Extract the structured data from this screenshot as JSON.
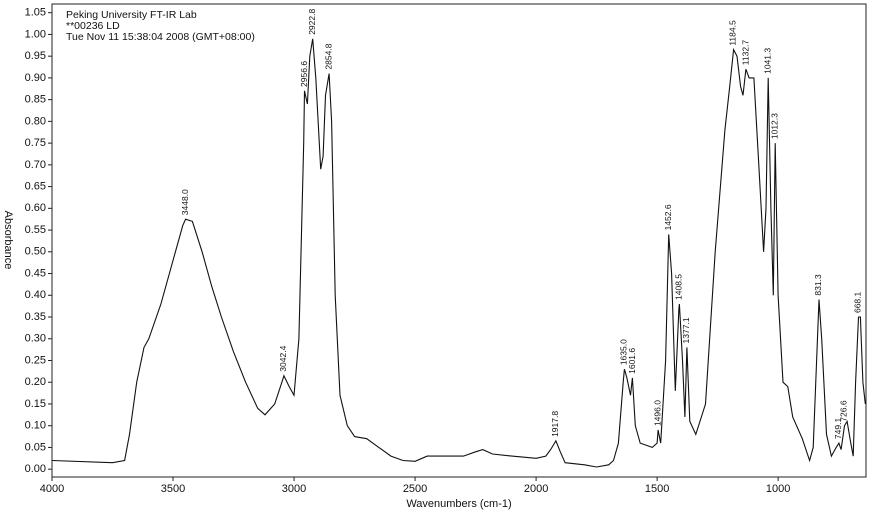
{
  "chart_data": {
    "type": "line",
    "header": [
      "Peking University FT-IR Lab",
      "**00236   LD",
      "Tue Nov 11 15:38:04 2008 (GMT+08:00)"
    ],
    "x_label": "Wavenumbers (cm-1)",
    "y_label": "Absorbance",
    "color": "#111111",
    "xlim": [
      4000,
      637
    ],
    "ylim": [
      -0.018,
      1.07
    ],
    "xticks": [
      4000,
      3500,
      3000,
      2500,
      2000,
      1500,
      1000
    ],
    "yticks": [
      {
        "value": 0,
        "label": "0.00"
      },
      0.05,
      {
        "value": 0.1,
        "label": "0.10"
      },
      0.15,
      {
        "value": 0.2,
        "label": "0.20"
      },
      0.25,
      {
        "value": 0.3,
        "label": "0.30"
      },
      0.35,
      {
        "value": 0.4,
        "label": "0.40"
      },
      0.45,
      {
        "value": 0.5,
        "label": "0.50"
      },
      0.55,
      {
        "value": 0.6,
        "label": "0.60"
      },
      0.65,
      {
        "value": 0.7,
        "label": "0.70"
      },
      0.75,
      {
        "value": 0.8,
        "label": "0.80"
      },
      0.85,
      {
        "value": 0.9,
        "label": "0.90"
      },
      0.95,
      {
        "value": 1.0,
        "label": "1.00"
      },
      1.05
    ],
    "x": [
      4000,
      3750,
      3700,
      3680,
      3650,
      3620,
      3600,
      3550,
      3500,
      3460,
      3448,
      3420,
      3380,
      3340,
      3300,
      3250,
      3200,
      3150,
      3120,
      3080,
      3050,
      3042,
      3020,
      3000,
      2980,
      2960,
      2957,
      2945,
      2935,
      2923,
      2910,
      2890,
      2880,
      2870,
      2855,
      2845,
      2830,
      2810,
      2780,
      2750,
      2700,
      2650,
      2600,
      2550,
      2500,
      2450,
      2400,
      2350,
      2300,
      2250,
      2220,
      2180,
      2100,
      2000,
      1960,
      1940,
      1918,
      1900,
      1880,
      1800,
      1750,
      1700,
      1680,
      1660,
      1640,
      1635,
      1625,
      1610,
      1602,
      1590,
      1570,
      1520,
      1500,
      1496,
      1485,
      1465,
      1452,
      1440,
      1425,
      1410,
      1408,
      1395,
      1385,
      1377,
      1365,
      1340,
      1300,
      1260,
      1220,
      1200,
      1184,
      1170,
      1155,
      1145,
      1133,
      1120,
      1100,
      1080,
      1060,
      1050,
      1041,
      1030,
      1020,
      1012,
      1000,
      980,
      960,
      940,
      900,
      870,
      855,
      831,
      820,
      800,
      780,
      760,
      749,
      740,
      726,
      715,
      700,
      690,
      680,
      668,
      660,
      650,
      640
    ],
    "values": [
      0.02,
      0.015,
      0.02,
      0.08,
      0.2,
      0.28,
      0.3,
      0.38,
      0.48,
      0.56,
      0.575,
      0.57,
      0.5,
      0.42,
      0.35,
      0.27,
      0.2,
      0.14,
      0.125,
      0.15,
      0.2,
      0.215,
      0.19,
      0.17,
      0.3,
      0.75,
      0.87,
      0.84,
      0.95,
      0.99,
      0.9,
      0.69,
      0.72,
      0.86,
      0.91,
      0.8,
      0.4,
      0.17,
      0.1,
      0.075,
      0.07,
      0.05,
      0.03,
      0.02,
      0.018,
      0.03,
      0.03,
      0.03,
      0.03,
      0.04,
      0.045,
      0.035,
      0.03,
      0.025,
      0.03,
      0.045,
      0.065,
      0.04,
      0.015,
      0.01,
      0.005,
      0.01,
      0.02,
      0.06,
      0.2,
      0.23,
      0.21,
      0.17,
      0.21,
      0.1,
      0.06,
      0.05,
      0.06,
      0.09,
      0.06,
      0.25,
      0.54,
      0.45,
      0.18,
      0.37,
      0.38,
      0.25,
      0.12,
      0.28,
      0.11,
      0.08,
      0.15,
      0.5,
      0.78,
      0.88,
      0.965,
      0.95,
      0.88,
      0.86,
      0.92,
      0.9,
      0.9,
      0.7,
      0.5,
      0.6,
      0.9,
      0.6,
      0.4,
      0.75,
      0.4,
      0.2,
      0.19,
      0.12,
      0.07,
      0.02,
      0.05,
      0.39,
      0.3,
      0.08,
      0.03,
      0.05,
      0.06,
      0.045,
      0.1,
      0.11,
      0.06,
      0.03,
      0.2,
      0.35,
      0.35,
      0.2,
      0.15
    ],
    "peaks": [
      {
        "x": 3448,
        "y": 0.575,
        "label": "3448.0"
      },
      {
        "x": 3042.4,
        "y": 0.215,
        "label": "3042.4"
      },
      {
        "x": 2956.6,
        "y": 0.87,
        "label": "2956.6"
      },
      {
        "x": 2922.8,
        "y": 0.99,
        "label": "2922.8"
      },
      {
        "x": 2854.8,
        "y": 0.91,
        "label": "2854.8"
      },
      {
        "x": 1917.8,
        "y": 0.065,
        "label": "1917.8"
      },
      {
        "x": 1635,
        "y": 0.23,
        "label": "1635.0"
      },
      {
        "x": 1601.6,
        "y": 0.21,
        "label": "1601.6"
      },
      {
        "x": 1496,
        "y": 0.09,
        "label": "1496.0"
      },
      {
        "x": 1452.6,
        "y": 0.54,
        "label": "1452.6"
      },
      {
        "x": 1408.5,
        "y": 0.38,
        "label": "1408.5"
      },
      {
        "x": 1377.1,
        "y": 0.28,
        "label": "1377.1"
      },
      {
        "x": 1184.5,
        "y": 0.965,
        "label": "1184.5"
      },
      {
        "x": 1132.7,
        "y": 0.92,
        "label": "1132.7"
      },
      {
        "x": 1041.3,
        "y": 0.9,
        "label": "1041.3"
      },
      {
        "x": 1012.3,
        "y": 0.75,
        "label": "1012.3"
      },
      {
        "x": 831.3,
        "y": 0.39,
        "label": "831.3"
      },
      {
        "x": 749.1,
        "y": 0.06,
        "label": "749.1"
      },
      {
        "x": 726.6,
        "y": 0.1,
        "label": "726.6"
      },
      {
        "x": 668.1,
        "y": 0.35,
        "label": "668.1"
      }
    ]
  }
}
